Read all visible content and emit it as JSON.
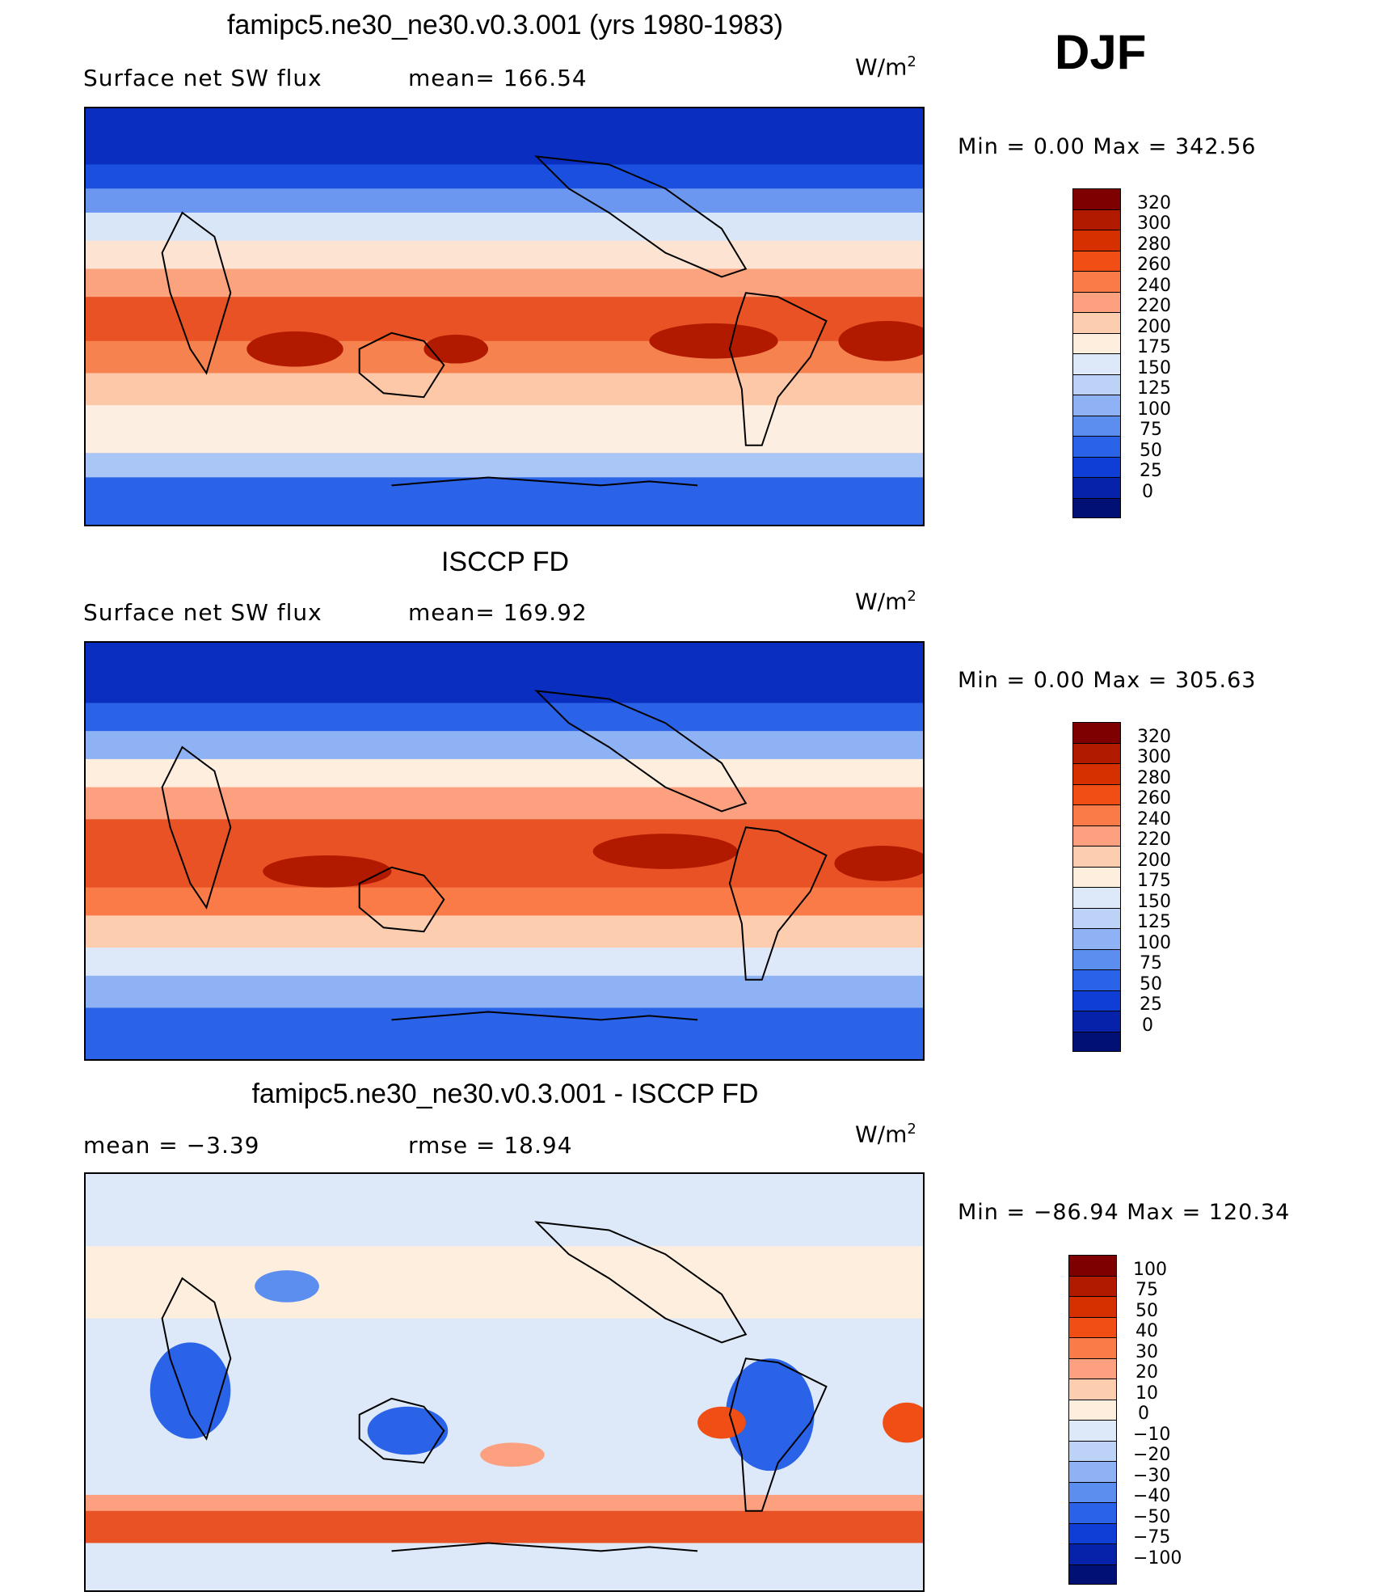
{
  "season": "DJF",
  "units_base": "W/m",
  "units_exp": "2",
  "panels": [
    {
      "id": "model",
      "title": "famipc5.ne30_ne30.v0.3.001 (yrs 1980-1983)",
      "left_label": "Surface net SW flux",
      "right_label": "mean=  166.54",
      "min_max": "Min =     0.00 Max =  342.56",
      "colorbar_levels": [
        "320",
        "300",
        "280",
        "260",
        "240",
        "220",
        "200",
        "175",
        "150",
        "125",
        "100",
        "75",
        "50",
        "25",
        "0"
      ],
      "colorbar_colors": [
        "#7f0000",
        "#b21a00",
        "#d73000",
        "#f04e14",
        "#fa7a48",
        "#fca080",
        "#fdcdb0",
        "#fdeede",
        "#dde9f8",
        "#bcd2f7",
        "#8fb2f5",
        "#5c8ef0",
        "#2a62e8",
        "#0f3ed6",
        "#0622aa",
        "#001074"
      ]
    },
    {
      "id": "obs",
      "title": "ISCCP FD",
      "left_label": "Surface net SW flux",
      "right_label": "mean=  169.92",
      "min_max": "Min =     0.00 Max =  305.63",
      "colorbar_levels": [
        "320",
        "300",
        "280",
        "260",
        "240",
        "220",
        "200",
        "175",
        "150",
        "125",
        "100",
        "75",
        "50",
        "25",
        "0"
      ],
      "colorbar_colors": [
        "#7f0000",
        "#b21a00",
        "#d73000",
        "#f04e14",
        "#fa7a48",
        "#fca080",
        "#fdcdb0",
        "#fdeede",
        "#dde9f8",
        "#bcd2f7",
        "#8fb2f5",
        "#5c8ef0",
        "#2a62e8",
        "#0f3ed6",
        "#0622aa",
        "#001074"
      ]
    },
    {
      "id": "diff",
      "title": "famipc5.ne30_ne30.v0.3.001 - ISCCP FD",
      "left_label": "mean =   −3.39",
      "right_label": "rmse =   18.94",
      "min_max": "Min = −86.94 Max =  120.34",
      "colorbar_levels": [
        "100",
        "75",
        "50",
        "40",
        "30",
        "20",
        "10",
        "0",
        "−10",
        "−20",
        "−30",
        "−40",
        "−50",
        "−75",
        "−100"
      ],
      "colorbar_colors": [
        "#7f0000",
        "#b21a00",
        "#d73000",
        "#f04e14",
        "#fa7a48",
        "#fca080",
        "#fdcdb0",
        "#fdeede",
        "#dde9f8",
        "#bcd2f7",
        "#8fb2f5",
        "#5c8ef0",
        "#2a62e8",
        "#0f3ed6",
        "#0622aa",
        "#001074"
      ]
    }
  ]
}
